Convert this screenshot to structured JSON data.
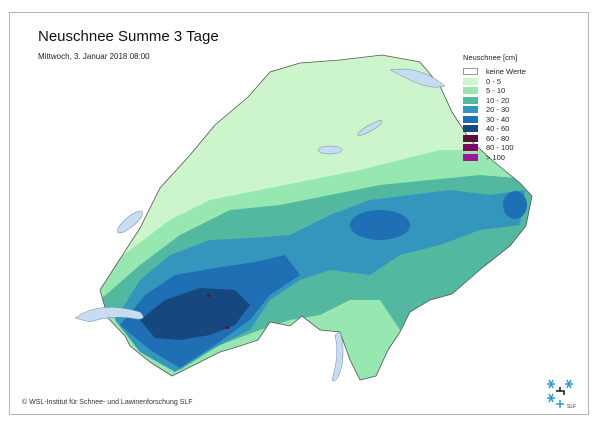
{
  "title": "Neuschnee Summe 3 Tage",
  "subtitle": "Mittwoch, 3. Januar 2018 08:00",
  "legend": {
    "title": "Neuschnee [cm]",
    "items": [
      {
        "label": "keine Werte",
        "color": "#ffffff"
      },
      {
        "label": "0 - 5",
        "color": "#ccf5cc"
      },
      {
        "label": "5 - 10",
        "color": "#96e8b0"
      },
      {
        "label": "10 - 20",
        "color": "#52b8a0"
      },
      {
        "label": "20 - 30",
        "color": "#3596bd"
      },
      {
        "label": "30 - 40",
        "color": "#1f6fb5"
      },
      {
        "label": "40 - 60",
        "color": "#17477f"
      },
      {
        "label": "60 - 80",
        "color": "#5a0f3c"
      },
      {
        "label": "80 - 100",
        "color": "#7d0a60"
      },
      {
        "label": "> 100",
        "color": "#a1159a"
      }
    ]
  },
  "lake_color": "#c7dcf0",
  "copyright": "© WSL-Institut für Schnee- und Lawinenforschung SLF",
  "logo_text": "SLF"
}
